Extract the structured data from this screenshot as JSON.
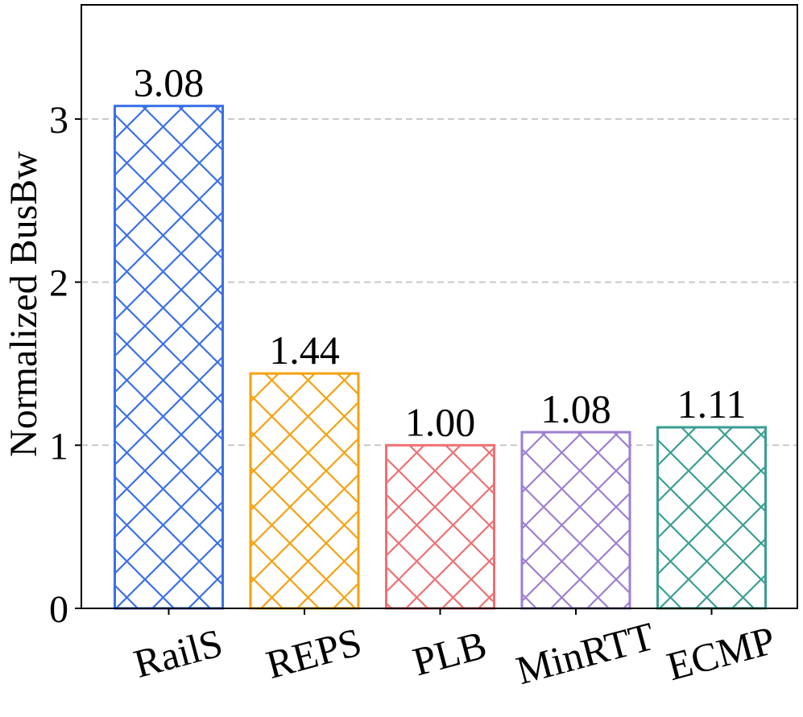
{
  "chart_data": {
    "type": "bar",
    "categories": [
      "RailS",
      "REPS",
      "PLB",
      "MinRTT",
      "ECMP"
    ],
    "values": [
      3.08,
      1.44,
      1.0,
      1.08,
      1.11
    ],
    "value_labels": [
      "3.08",
      "1.44",
      "1.00",
      "1.08",
      "1.11"
    ],
    "colors": [
      "#3a6fe8",
      "#f5a10f",
      "#ef6f72",
      "#9d7fd1",
      "#3a9e91"
    ],
    "hatch": "crosshatch",
    "title": "",
    "xlabel": "",
    "ylabel": "Normalized BusBw",
    "ylim": [
      0,
      3.7
    ],
    "yticks": [
      0,
      1,
      2,
      3
    ],
    "ytick_labels": [
      "0",
      "1",
      "2",
      "3"
    ],
    "grid": "horizontal dashed",
    "legend": "none"
  }
}
